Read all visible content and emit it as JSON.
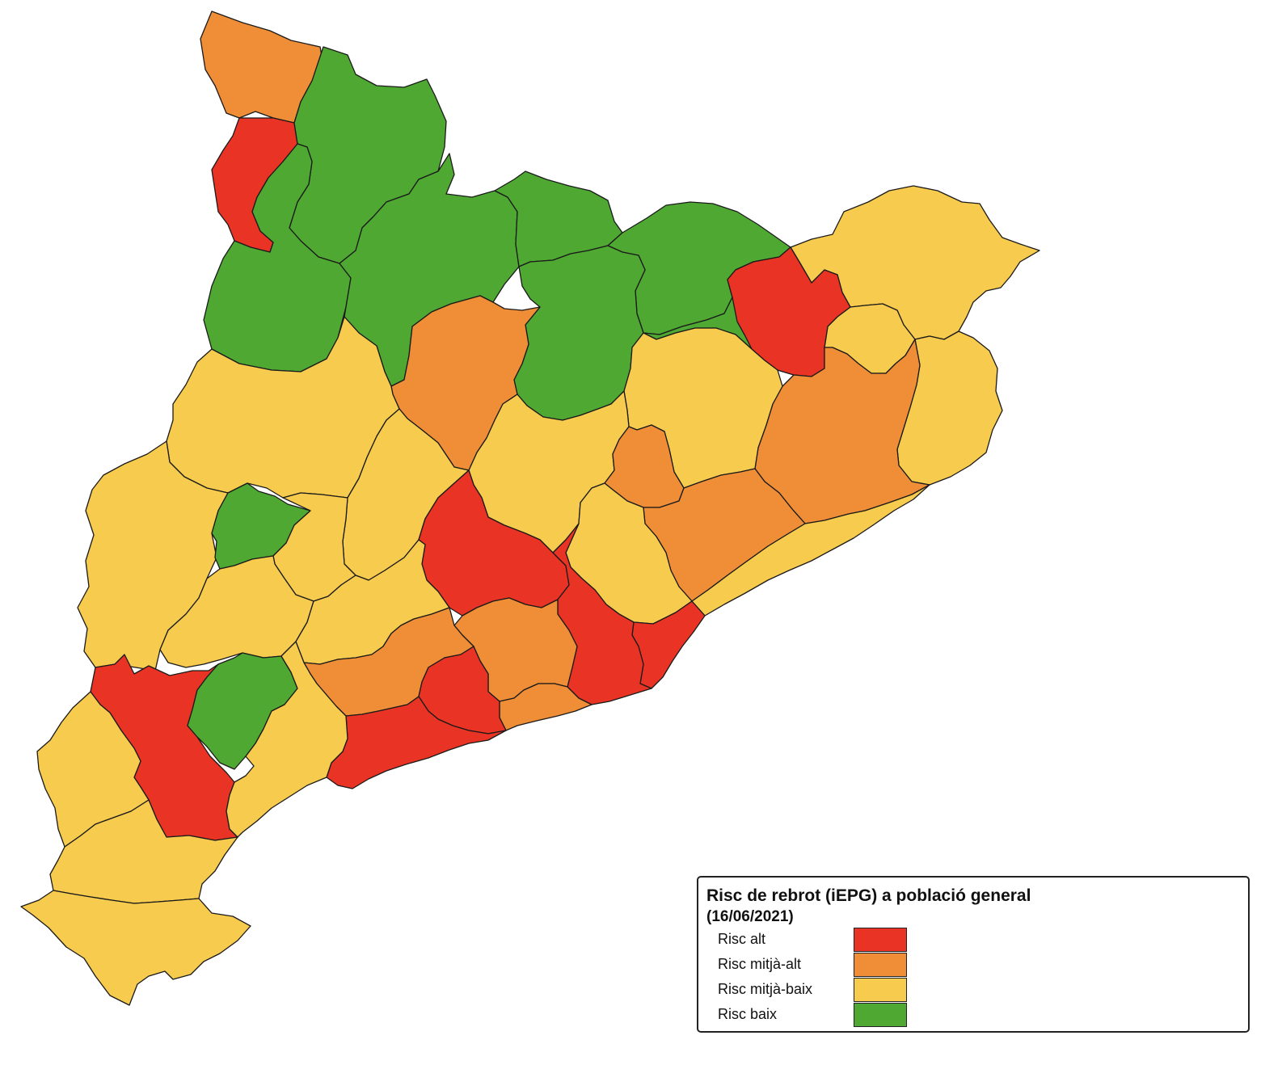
{
  "legend": {
    "title": "Risc de rebrot (iEPG) a població general",
    "date": "(16/06/2021)",
    "items": [
      {
        "label": "Risc alt",
        "color": "#e93324"
      },
      {
        "label": "Risc mitjà-alt",
        "color": "#ef8e36"
      },
      {
        "label": "Risc mitjà-baix",
        "color": "#f7cb4d"
      },
      {
        "label": "Risc baix",
        "color": "#4ea832"
      }
    ]
  },
  "regions": [
    {
      "id": "val-aran",
      "risk": "Risc mitjà-alt"
    },
    {
      "id": "alta-ribagorca",
      "risk": "Risc alt"
    },
    {
      "id": "pallars-sobira",
      "risk": "Risc baix"
    },
    {
      "id": "pallars-jussa",
      "risk": "Risc baix"
    },
    {
      "id": "alt-urgell",
      "risk": "Risc baix"
    },
    {
      "id": "cerdanya",
      "risk": "Risc baix"
    },
    {
      "id": "ripolles",
      "risk": "Risc baix"
    },
    {
      "id": "bergueda",
      "risk": "Risc baix"
    },
    {
      "id": "garrotxa",
      "risk": "Risc baix"
    },
    {
      "id": "alt-emporda",
      "risk": "Risc mitjà-baix"
    },
    {
      "id": "pla-estany",
      "risk": "Risc mitjà-baix"
    },
    {
      "id": "baix-emporda",
      "risk": "Risc mitjà-baix"
    },
    {
      "id": "girones",
      "risk": "Risc alt"
    },
    {
      "id": "selva",
      "risk": "Risc mitjà-alt"
    },
    {
      "id": "osona",
      "risk": "Risc mitjà-baix"
    },
    {
      "id": "solsones",
      "risk": "Risc mitjà-alt"
    },
    {
      "id": "noguera",
      "risk": "Risc mitjà-baix"
    },
    {
      "id": "segarra",
      "risk": "Risc mitjà-baix"
    },
    {
      "id": "bages",
      "risk": "Risc mitjà-baix"
    },
    {
      "id": "moianes",
      "risk": "Risc mitjà-alt"
    },
    {
      "id": "valles-oriental",
      "risk": "Risc mitjà-alt"
    },
    {
      "id": "maresme",
      "risk": "Risc mitjà-baix"
    },
    {
      "id": "segria",
      "risk": "Risc mitjà-baix"
    },
    {
      "id": "pla-urgell",
      "risk": "Risc baix"
    },
    {
      "id": "urgell",
      "risk": "Risc mitjà-baix"
    },
    {
      "id": "garrigues",
      "risk": "Risc mitjà-baix"
    },
    {
      "id": "anoia",
      "risk": "Risc alt"
    },
    {
      "id": "valles-occidental",
      "risk": "Risc mitjà-baix"
    },
    {
      "id": "barcelones",
      "risk": "Risc alt"
    },
    {
      "id": "baix-llobregat",
      "risk": "Risc alt"
    },
    {
      "id": "alt-penedes",
      "risk": "Risc mitjà-alt"
    },
    {
      "id": "garraf",
      "risk": "Risc mitjà-alt"
    },
    {
      "id": "conca-barbera",
      "risk": "Risc mitjà-baix"
    },
    {
      "id": "alt-camp",
      "risk": "Risc mitjà-alt"
    },
    {
      "id": "baix-penedes",
      "risk": "Risc alt"
    },
    {
      "id": "tarragones",
      "risk": "Risc alt"
    },
    {
      "id": "ribera-ebre",
      "risk": "Risc alt"
    },
    {
      "id": "priorat",
      "risk": "Risc baix"
    },
    {
      "id": "baix-camp",
      "risk": "Risc mitjà-baix"
    },
    {
      "id": "terra-alta",
      "risk": "Risc mitjà-baix"
    },
    {
      "id": "baix-ebre",
      "risk": "Risc mitjà-baix"
    },
    {
      "id": "montsia",
      "risk": "Risc mitjà-baix"
    }
  ]
}
